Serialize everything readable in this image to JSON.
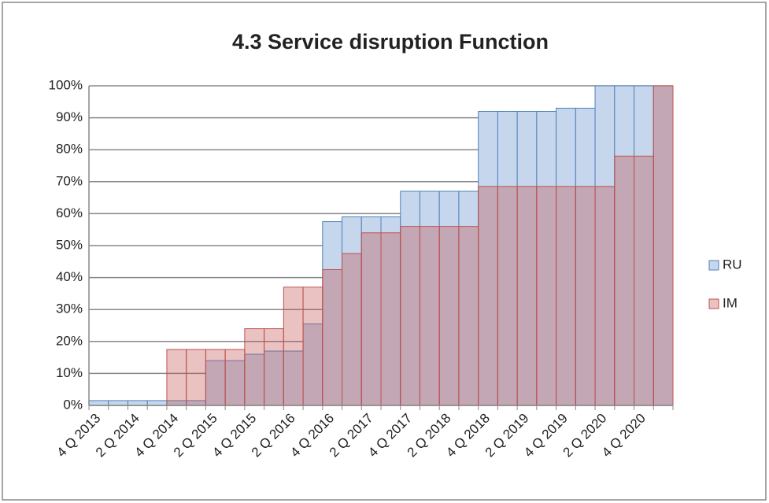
{
  "chart_data": {
    "type": "bar",
    "title": "4.3 Service disruption Function",
    "categories": [
      "4 Q 2013",
      null,
      "2 Q 2014",
      null,
      "4 Q 2014",
      null,
      "2 Q 2015",
      null,
      "4 Q 2015",
      null,
      "2 Q 2016",
      null,
      "4 Q 2016",
      null,
      "2 Q 2017",
      null,
      "4 Q 2017",
      null,
      "2 Q 2018",
      null,
      "4 Q 2018",
      null,
      "2 Q 2019",
      null,
      "4 Q 2019",
      null,
      "2 Q 2020",
      null,
      "4 Q 2020",
      null
    ],
    "series": [
      {
        "name": "RU",
        "color": "#4f81bd",
        "fill": "#c6d6ec",
        "values": [
          1.5,
          1.5,
          1.5,
          1.5,
          1.5,
          1.5,
          14,
          14,
          16,
          17,
          17,
          25.5,
          57.5,
          59,
          59,
          59,
          67,
          67,
          67,
          67,
          92,
          92,
          92,
          92,
          93,
          93,
          100,
          100,
          100,
          100
        ]
      },
      {
        "name": "IM",
        "color": "#c0504d",
        "fill": "rgba(192,80,77,0.35)",
        "values": [
          0,
          0,
          0,
          0,
          17.5,
          17.5,
          17.5,
          17.5,
          24,
          24,
          37,
          37,
          42.5,
          47.5,
          54,
          54,
          56,
          56,
          56,
          56,
          68.5,
          68.5,
          68.5,
          68.5,
          68.5,
          68.5,
          68.5,
          78,
          78,
          100
        ]
      }
    ],
    "ylim": [
      0,
      100
    ],
    "yticks": [
      {
        "value": 0,
        "label": "0%"
      },
      {
        "value": 10,
        "label": "10%"
      },
      {
        "value": 20,
        "label": "20%"
      },
      {
        "value": 30,
        "label": "30%"
      },
      {
        "value": 40,
        "label": "40%"
      },
      {
        "value": 50,
        "label": "50%"
      },
      {
        "value": 60,
        "label": "60%"
      },
      {
        "value": 70,
        "label": "70%"
      },
      {
        "value": 80,
        "label": "80%"
      },
      {
        "value": 90,
        "label": "90%"
      },
      {
        "value": 100,
        "label": "100%"
      }
    ],
    "grid": true,
    "legend": "right"
  }
}
